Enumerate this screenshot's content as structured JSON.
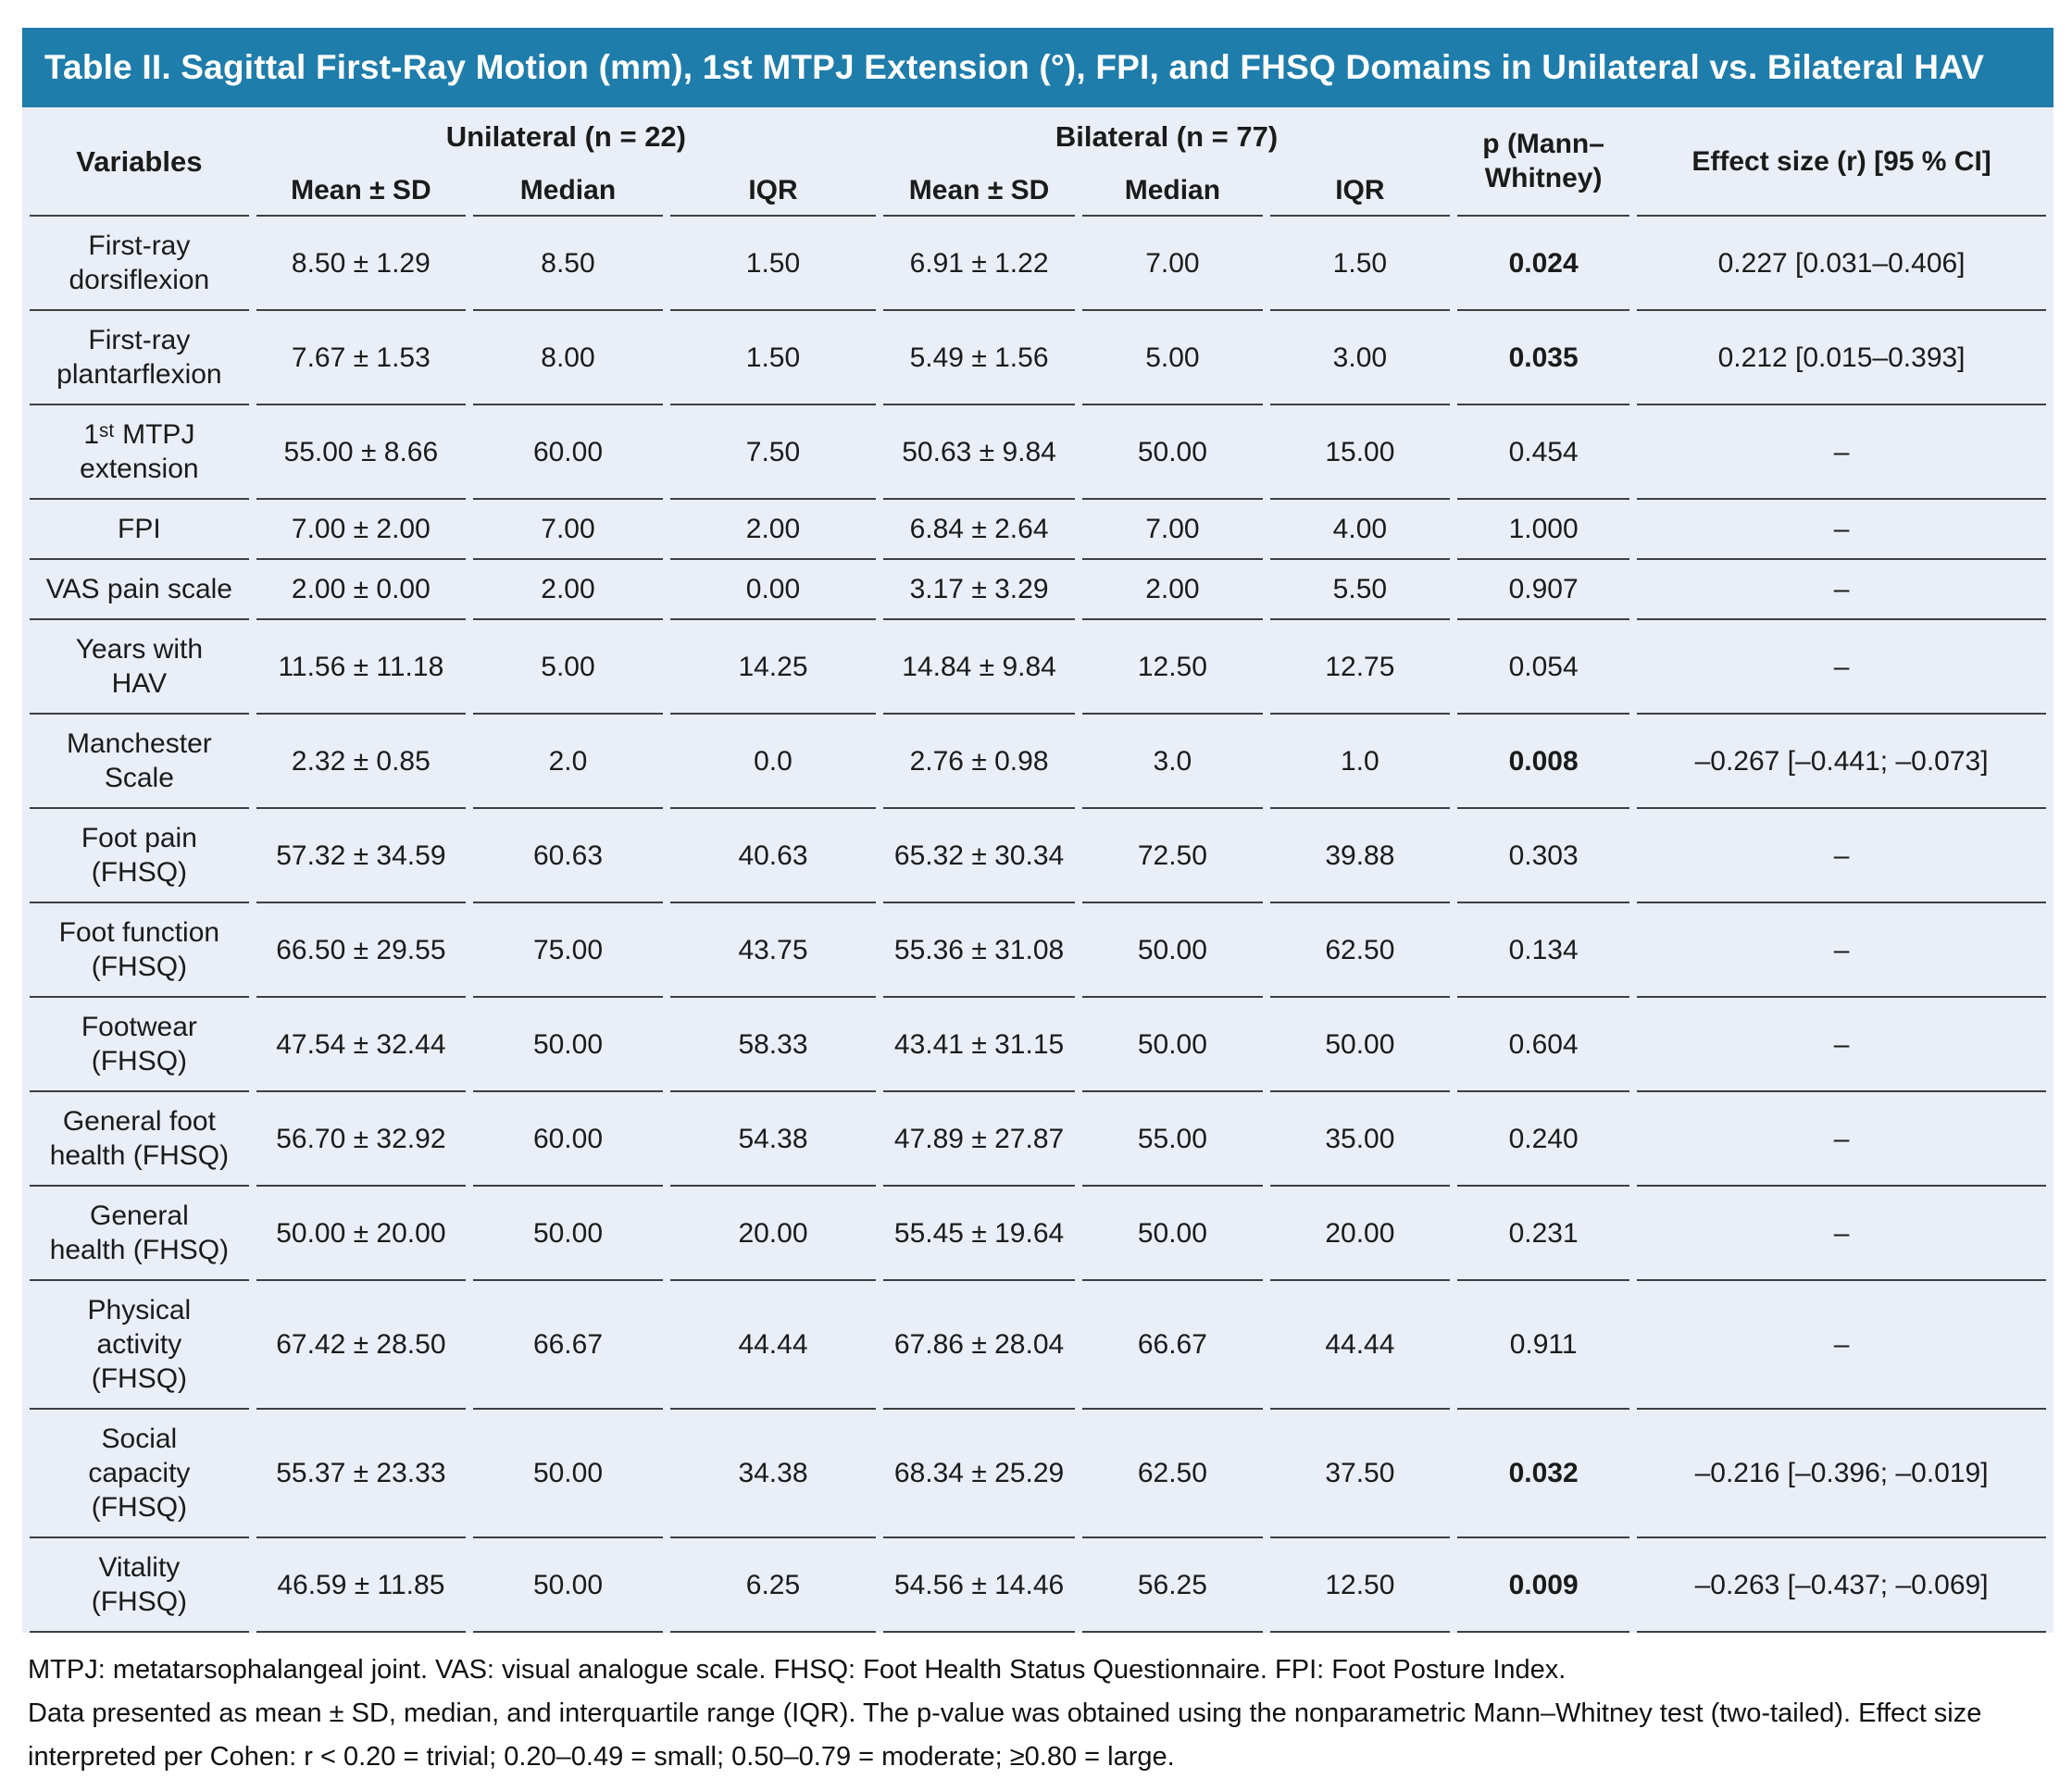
{
  "colors": {
    "title_bar_bg": "#1e7dab",
    "title_text": "#ffffff",
    "table_bg": "#eaeef6",
    "divider": "#3c4043",
    "body_text": "#1b1b1b"
  },
  "table": {
    "title": "Table II. Sagittal First-Ray Motion (mm), 1st MTPJ Extension (°), FPI, and FHSQ Domains in Unilateral vs. Bilateral HAV",
    "header": {
      "variables": "Variables",
      "unilateral_label": "Unilateral (n = 22)",
      "bilateral_label": "Bilateral (n = 77)",
      "sub": [
        "Mean ± SD",
        "Median",
        "IQR"
      ],
      "p_label": "p (Mann–Whitney)",
      "effect_label": "Effect size (r) [95 % CI]"
    },
    "rows": [
      {
        "label": "First-ray\ndorsiflexion",
        "uni": [
          "8.50 ± 1.29",
          "8.50",
          "1.50"
        ],
        "bi": [
          "6.91 ± 1.22",
          "7.00",
          "1.50"
        ],
        "p": "0.024",
        "p_bold": true,
        "effect": "0.227 [0.031–0.406]"
      },
      {
        "label": "First-ray\nplantarflexion",
        "uni": [
          "7.67 ± 1.53",
          "8.00",
          "1.50"
        ],
        "bi": [
          "5.49 ± 1.56",
          "5.00",
          "3.00"
        ],
        "p": "0.035",
        "p_bold": true,
        "effect": "0.212 [0.015–0.393]"
      },
      {
        "label": "1ˢᵗ MTPJ\nextension",
        "uni": [
          "55.00 ± 8.66",
          "60.00",
          "7.50"
        ],
        "bi": [
          "50.63 ± 9.84",
          "50.00",
          "15.00"
        ],
        "p": "0.454",
        "p_bold": false,
        "effect": "–"
      },
      {
        "label": "FPI",
        "uni": [
          "7.00 ± 2.00",
          "7.00",
          "2.00"
        ],
        "bi": [
          "6.84 ± 2.64",
          "7.00",
          "4.00"
        ],
        "p": "1.000",
        "p_bold": false,
        "effect": "–"
      },
      {
        "label": "VAS pain scale",
        "uni": [
          "2.00 ± 0.00",
          "2.00",
          "0.00"
        ],
        "bi": [
          "3.17 ± 3.29",
          "2.00",
          "5.50"
        ],
        "p": "0.907",
        "p_bold": false,
        "effect": "–"
      },
      {
        "label": "Years with\nHAV",
        "uni": [
          "11.56 ± 11.18",
          "5.00",
          "14.25"
        ],
        "bi": [
          "14.84 ± 9.84",
          "12.50",
          "12.75"
        ],
        "p": "0.054",
        "p_bold": false,
        "effect": "–"
      },
      {
        "label": "Manchester\nScale",
        "uni": [
          "2.32 ± 0.85",
          "2.0",
          "0.0"
        ],
        "bi": [
          "2.76 ± 0.98",
          "3.0",
          "1.0"
        ],
        "p": "0.008",
        "p_bold": true,
        "effect": "–0.267 [–0.441; –0.073]"
      },
      {
        "label": "Foot pain\n(FHSQ)",
        "uni": [
          "57.32 ± 34.59",
          "60.63",
          "40.63"
        ],
        "bi": [
          "65.32 ± 30.34",
          "72.50",
          "39.88"
        ],
        "p": "0.303",
        "p_bold": false,
        "effect": "–"
      },
      {
        "label": "Foot function\n(FHSQ)",
        "uni": [
          "66.50 ± 29.55",
          "75.00",
          "43.75"
        ],
        "bi": [
          "55.36 ± 31.08",
          "50.00",
          "62.50"
        ],
        "p": "0.134",
        "p_bold": false,
        "effect": "–"
      },
      {
        "label": "Footwear\n(FHSQ)",
        "uni": [
          "47.54 ± 32.44",
          "50.00",
          "58.33"
        ],
        "bi": [
          "43.41 ± 31.15",
          "50.00",
          "50.00"
        ],
        "p": "0.604",
        "p_bold": false,
        "effect": "–"
      },
      {
        "label": "General foot\nhealth (FHSQ)",
        "uni": [
          "56.70 ± 32.92",
          "60.00",
          "54.38"
        ],
        "bi": [
          "47.89 ± 27.87",
          "55.00",
          "35.00"
        ],
        "p": "0.240",
        "p_bold": false,
        "effect": "–"
      },
      {
        "label": "General\nhealth (FHSQ)",
        "uni": [
          "50.00 ± 20.00",
          "50.00",
          "20.00"
        ],
        "bi": [
          "55.45 ± 19.64",
          "50.00",
          "20.00"
        ],
        "p": "0.231",
        "p_bold": false,
        "effect": "–"
      },
      {
        "label": "Physical\nactivity\n(FHSQ)",
        "uni": [
          "67.42 ± 28.50",
          "66.67",
          "44.44"
        ],
        "bi": [
          "67.86 ± 28.04",
          "66.67",
          "44.44"
        ],
        "p": "0.911",
        "p_bold": false,
        "effect": "–"
      },
      {
        "label": "Social\ncapacity\n(FHSQ)",
        "uni": [
          "55.37 ± 23.33",
          "50.00",
          "34.38"
        ],
        "bi": [
          "68.34 ± 25.29",
          "62.50",
          "37.50"
        ],
        "p": "0.032",
        "p_bold": true,
        "effect": "–0.216 [–0.396; –0.019]"
      },
      {
        "label": "Vitality\n(FHSQ)",
        "uni": [
          "46.59 ± 11.85",
          "50.00",
          "6.25"
        ],
        "bi": [
          "54.56 ± 14.46",
          "56.25",
          "12.50"
        ],
        "p": "0.009",
        "p_bold": true,
        "effect": "–0.263 [–0.437; –0.069]"
      }
    ]
  },
  "footnotes": {
    "line1": "MTPJ: metatarsophalangeal joint. VAS: visual analogue scale. FHSQ: Foot Health Status Questionnaire. FPI: Foot Posture Index.",
    "line2": "Data presented as mean ± SD, median, and interquartile range (IQR). The p-value was obtained using the nonparametric Mann–Whitney test (two-tailed). Effect size",
    "line3": "interpreted per Cohen: r < 0.20 = trivial; 0.20–0.49 = small; 0.50–0.79 = moderate; ≥0.80 = large."
  }
}
